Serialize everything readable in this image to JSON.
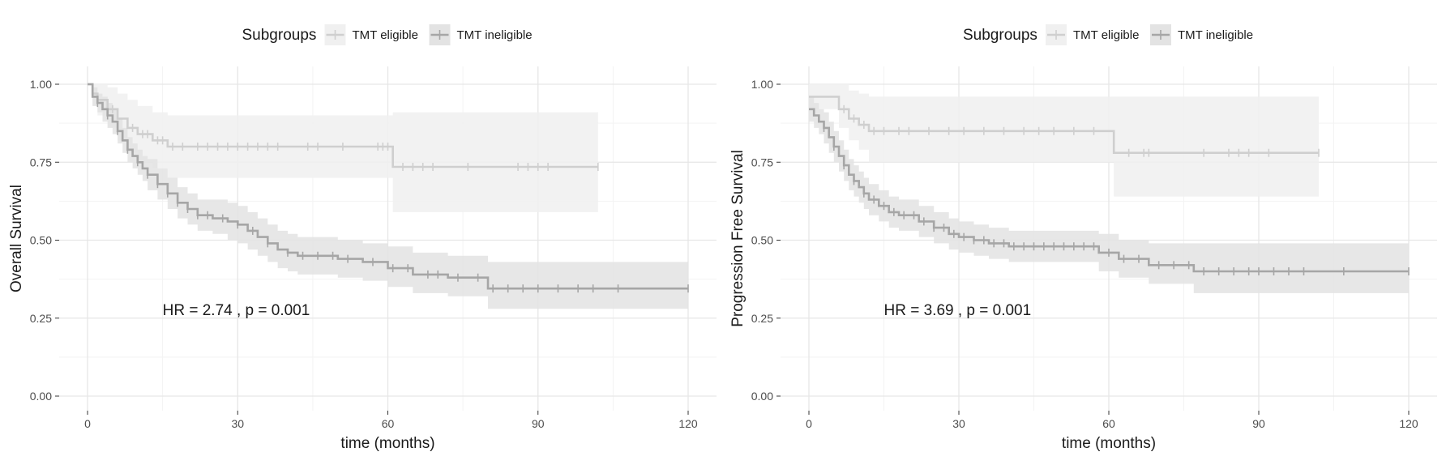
{
  "chart_data": [
    {
      "type": "line",
      "subtype": "kaplan-meier",
      "title": "",
      "xlabel": "time (months)",
      "ylabel": "Overall Survival",
      "xlim": [
        0,
        120
      ],
      "ylim": [
        0,
        1
      ],
      "xticks": [
        0,
        30,
        60,
        90,
        120
      ],
      "xtick_labels": [
        "0",
        "30",
        "60",
        "90",
        "120"
      ],
      "yticks": [
        0,
        0.25,
        0.5,
        0.75,
        1
      ],
      "ytick_labels": [
        "0.00",
        "0.25",
        "0.50",
        "0.75",
        "1.00"
      ],
      "grid": true,
      "legend": {
        "title": "Subgroups",
        "position": "top-center"
      },
      "annotation": {
        "text": "HR = 2.74 , p = 0.001",
        "x": 15,
        "y": 0.26
      },
      "series": [
        {
          "name": "TMT eligible",
          "color": "#cfcfcf",
          "band_color": "#f0f0f0",
          "x": [
            0,
            1,
            2,
            4,
            6,
            8,
            10,
            13,
            16,
            61,
            102
          ],
          "y": [
            1.0,
            0.97,
            0.95,
            0.92,
            0.89,
            0.86,
            0.84,
            0.82,
            0.8,
            0.735,
            0.735
          ],
          "lower": [
            1.0,
            0.93,
            0.9,
            0.86,
            0.82,
            0.78,
            0.75,
            0.73,
            0.7,
            0.59,
            0.59
          ],
          "upper": [
            1.0,
            1.0,
            1.0,
            0.99,
            0.97,
            0.95,
            0.93,
            0.91,
            0.9,
            0.91,
            0.91
          ],
          "censor_x": [
            5,
            9,
            11,
            12,
            14,
            15,
            17,
            19,
            22,
            24,
            26,
            28,
            30,
            32,
            34,
            36,
            38,
            44,
            46,
            51,
            58,
            59,
            60,
            63,
            65,
            67,
            69,
            76,
            86,
            88,
            90,
            92,
            102
          ]
        },
        {
          "name": "TMT ineligible",
          "color": "#a6a6a6",
          "band_color": "#e3e3e3",
          "x": [
            0,
            1,
            2,
            3,
            4,
            5,
            6,
            7,
            8,
            9,
            10,
            11,
            12,
            14,
            16,
            18,
            20,
            22,
            25,
            28,
            30,
            32,
            34,
            36,
            38,
            40,
            42,
            45,
            50,
            55,
            60,
            65,
            72,
            80,
            120
          ],
          "y": [
            1.0,
            0.96,
            0.94,
            0.92,
            0.9,
            0.88,
            0.85,
            0.82,
            0.79,
            0.77,
            0.75,
            0.73,
            0.71,
            0.68,
            0.65,
            0.62,
            0.6,
            0.58,
            0.57,
            0.56,
            0.55,
            0.53,
            0.51,
            0.49,
            0.47,
            0.46,
            0.45,
            0.45,
            0.44,
            0.43,
            0.41,
            0.39,
            0.38,
            0.345,
            0.345
          ],
          "lower": [
            1.0,
            0.93,
            0.91,
            0.88,
            0.86,
            0.84,
            0.81,
            0.78,
            0.75,
            0.73,
            0.71,
            0.69,
            0.66,
            0.63,
            0.6,
            0.57,
            0.55,
            0.53,
            0.52,
            0.5,
            0.49,
            0.47,
            0.45,
            0.43,
            0.41,
            0.4,
            0.39,
            0.39,
            0.38,
            0.37,
            0.35,
            0.33,
            0.32,
            0.28,
            0.28
          ],
          "upper": [
            1.0,
            0.99,
            0.97,
            0.96,
            0.94,
            0.92,
            0.89,
            0.86,
            0.83,
            0.81,
            0.79,
            0.77,
            0.76,
            0.73,
            0.7,
            0.67,
            0.65,
            0.63,
            0.63,
            0.62,
            0.61,
            0.59,
            0.57,
            0.55,
            0.53,
            0.52,
            0.51,
            0.51,
            0.5,
            0.49,
            0.48,
            0.46,
            0.45,
            0.43,
            0.43
          ],
          "censor_x": [
            2,
            4,
            6,
            8,
            10,
            12,
            14,
            16,
            18,
            20,
            22,
            24,
            27,
            30,
            33,
            36,
            40,
            43,
            46,
            49,
            52,
            57,
            61,
            64,
            68,
            70,
            74,
            78,
            81,
            84,
            87,
            90,
            94,
            98,
            101,
            106,
            120
          ]
        }
      ]
    },
    {
      "type": "line",
      "subtype": "kaplan-meier",
      "title": "",
      "xlabel": "time (months)",
      "ylabel": "Progression Free Survival",
      "xlim": [
        0,
        120
      ],
      "ylim": [
        0,
        1
      ],
      "xticks": [
        0,
        30,
        60,
        90,
        120
      ],
      "xtick_labels": [
        "0",
        "30",
        "60",
        "90",
        "120"
      ],
      "yticks": [
        0,
        0.25,
        0.5,
        0.75,
        1
      ],
      "ytick_labels": [
        "0.00",
        "0.25",
        "0.50",
        "0.75",
        "1.00"
      ],
      "grid": true,
      "legend": {
        "title": "Subgroups",
        "position": "top-center"
      },
      "annotation": {
        "text": "HR = 3.69 , p = 0.001",
        "x": 15,
        "y": 0.26
      },
      "series": [
        {
          "name": "TMT eligible",
          "color": "#cfcfcf",
          "band_color": "#f0f0f0",
          "x": [
            0,
            1,
            6,
            8,
            10,
            12,
            61,
            102
          ],
          "y": [
            0.96,
            0.96,
            0.92,
            0.89,
            0.87,
            0.85,
            0.78,
            0.78
          ],
          "lower": [
            0.92,
            0.92,
            0.86,
            0.82,
            0.79,
            0.75,
            0.64,
            0.64
          ],
          "upper": [
            1.0,
            1.0,
            1.0,
            0.98,
            0.97,
            0.96,
            0.96,
            0.96
          ],
          "censor_x": [
            7,
            9,
            11,
            13,
            15,
            18,
            20,
            24,
            28,
            31,
            35,
            39,
            43,
            46,
            49,
            53,
            57,
            64,
            67,
            68,
            79,
            84,
            86,
            88,
            92,
            102
          ]
        },
        {
          "name": "TMT ineligible",
          "color": "#a6a6a6",
          "band_color": "#e3e3e3",
          "x": [
            0,
            1,
            2,
            3,
            4,
            5,
            6,
            7,
            8,
            9,
            10,
            11,
            12,
            14,
            16,
            18,
            22,
            25,
            28,
            30,
            33,
            36,
            40,
            50,
            58,
            62,
            68,
            77,
            120
          ],
          "y": [
            0.92,
            0.9,
            0.88,
            0.86,
            0.83,
            0.8,
            0.77,
            0.74,
            0.71,
            0.69,
            0.67,
            0.65,
            0.63,
            0.61,
            0.59,
            0.58,
            0.56,
            0.54,
            0.52,
            0.51,
            0.5,
            0.49,
            0.48,
            0.48,
            0.46,
            0.44,
            0.42,
            0.4,
            0.4
          ],
          "lower": [
            0.88,
            0.86,
            0.84,
            0.81,
            0.78,
            0.75,
            0.72,
            0.69,
            0.66,
            0.64,
            0.62,
            0.6,
            0.58,
            0.56,
            0.54,
            0.53,
            0.51,
            0.49,
            0.47,
            0.46,
            0.45,
            0.44,
            0.43,
            0.43,
            0.4,
            0.38,
            0.36,
            0.33,
            0.33
          ],
          "upper": [
            0.96,
            0.94,
            0.92,
            0.91,
            0.88,
            0.85,
            0.82,
            0.79,
            0.76,
            0.74,
            0.72,
            0.7,
            0.68,
            0.66,
            0.64,
            0.63,
            0.61,
            0.59,
            0.57,
            0.56,
            0.55,
            0.54,
            0.53,
            0.53,
            0.52,
            0.5,
            0.49,
            0.49,
            0.49
          ],
          "censor_x": [
            3,
            5,
            7,
            9,
            11,
            13,
            15,
            17,
            19,
            21,
            23,
            25,
            27,
            29,
            31,
            33,
            35,
            37,
            39,
            41,
            43,
            45,
            47,
            49,
            51,
            53,
            55,
            57,
            60,
            63,
            66,
            70,
            73,
            76,
            79,
            82,
            85,
            88,
            90,
            93,
            96,
            99,
            107,
            120
          ]
        }
      ]
    }
  ]
}
